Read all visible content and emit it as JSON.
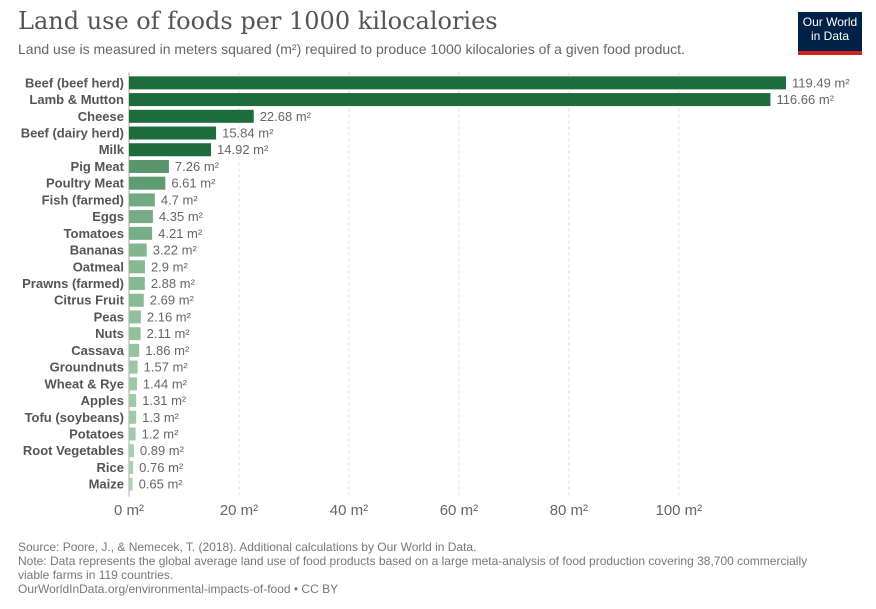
{
  "header": {
    "title": "Land use of foods per 1000 kilocalories",
    "subtitle": "Land use is measured in meters squared (m²) required to produce 1000 kilocalories of a given food product."
  },
  "logo": {
    "line1": "Our World",
    "line2": "in Data",
    "bg_color": "#002147",
    "accent_color": "#ce261e"
  },
  "chart_data": {
    "type": "bar",
    "orientation": "horizontal",
    "title": "Land use of foods per 1000 kilocalories",
    "subtitle": "Land use is measured in meters squared (m²) required to produce 1000 kilocalories of a given food product.",
    "unit": "m²",
    "categories": [
      "Beef (beef herd)",
      "Lamb & Mutton",
      "Cheese",
      "Beef (dairy herd)",
      "Milk",
      "Pig Meat",
      "Poultry Meat",
      "Fish (farmed)",
      "Eggs",
      "Tomatoes",
      "Bananas",
      "Oatmeal",
      "Prawns (farmed)",
      "Citrus Fruit",
      "Peas",
      "Nuts",
      "Cassava",
      "Groundnuts",
      "Wheat & Rye",
      "Apples",
      "Tofu (soybeans)",
      "Potatoes",
      "Root Vegetables",
      "Rice",
      "Maize"
    ],
    "values": [
      119.49,
      116.66,
      22.68,
      15.84,
      14.92,
      7.26,
      6.61,
      4.7,
      4.35,
      4.21,
      3.22,
      2.9,
      2.88,
      2.69,
      2.16,
      2.11,
      1.86,
      1.57,
      1.44,
      1.31,
      1.3,
      1.2,
      0.89,
      0.76,
      0.65
    ],
    "value_labels": [
      "119.49 m²",
      "116.66 m²",
      "22.68 m²",
      "15.84 m²",
      "14.92 m²",
      "7.26 m²",
      "6.61 m²",
      "4.7 m²",
      "4.35 m²",
      "4.21 m²",
      "3.22 m²",
      "2.9 m²",
      "2.88 m²",
      "2.69 m²",
      "2.16 m²",
      "2.11 m²",
      "1.86 m²",
      "1.57 m²",
      "1.44 m²",
      "1.31 m²",
      "1.3 m²",
      "1.2 m²",
      "0.89 m²",
      "0.76 m²",
      "0.65 m²"
    ],
    "xlim": [
      0,
      119.49
    ],
    "xticks": [
      0,
      20,
      40,
      60,
      80,
      100
    ],
    "xtick_labels": [
      "0 m²",
      "20 m²",
      "40 m²",
      "60 m²",
      "80 m²",
      "100 m²"
    ],
    "grid": true,
    "color_scale": [
      "#c5e6c5",
      "#1e6b3b"
    ]
  },
  "footer": {
    "source": "Source: Poore, J., & Nemecek, T. (2018). Additional calculations by Our World in Data.",
    "note": "Note: Data represents the global average land use of food products based on a large meta-analysis of food production covering 38,700 commercially viable farms in 119 countries.",
    "link": "OurWorldInData.org/environmental-impacts-of-food • CC BY"
  }
}
